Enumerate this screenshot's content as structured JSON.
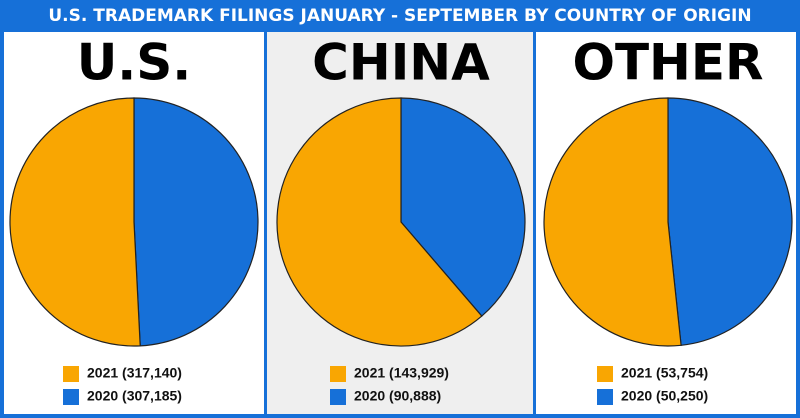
{
  "title": "U.S. TRADEMARK FILINGS JANUARY - SEPTEMBER BY COUNTRY OF ORIGIN",
  "chart_data": [
    {
      "type": "pie",
      "title": "U.S.",
      "categories": [
        "2021 (317,140)",
        "2020 (307,185)"
      ],
      "values": [
        317140,
        307185
      ],
      "colors": [
        "#f9a602",
        "#1670d8"
      ]
    },
    {
      "type": "pie",
      "title": "CHINA",
      "categories": [
        "2021 (143,929)",
        "2020 (90,888)"
      ],
      "values": [
        143929,
        90888
      ],
      "colors": [
        "#f9a602",
        "#1670d8"
      ]
    },
    {
      "type": "pie",
      "title": "OTHER",
      "categories": [
        "2021 (53,754)",
        "2020 (50,250)"
      ],
      "values": [
        53754,
        50250
      ],
      "colors": [
        "#f9a602",
        "#1670d8"
      ]
    }
  ]
}
